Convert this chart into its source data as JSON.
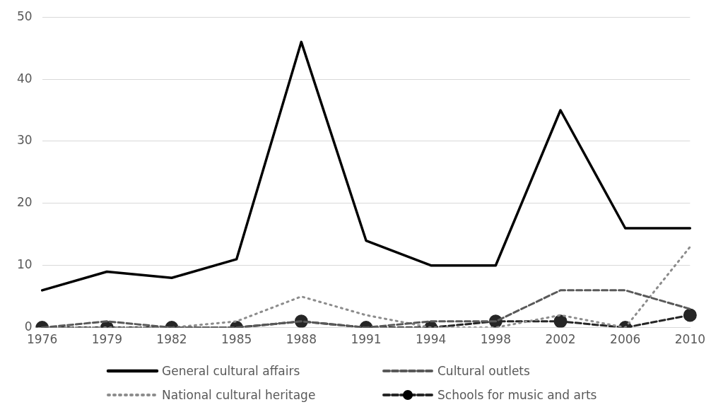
{
  "chart_data": {
    "type": "line",
    "categories": [
      "1976",
      "1979",
      "1982",
      "1985",
      "1988",
      "1991",
      "1994",
      "1998",
      "2002",
      "2006",
      "2010"
    ],
    "series": [
      {
        "name": "General cultural affairs",
        "color": "#000000",
        "line_style": "solid",
        "marker": "none",
        "values": [
          6,
          9,
          8,
          11,
          46,
          14,
          10,
          10,
          35,
          16,
          16
        ]
      },
      {
        "name": "Cultural outlets",
        "color": "#595959",
        "line_style": "dashed",
        "marker": "none",
        "values": [
          0,
          1,
          0,
          0,
          1,
          0,
          1,
          1,
          6,
          6,
          3
        ]
      },
      {
        "name": "National cultural heritage",
        "color": "#8c8c8c",
        "line_style": "dotted",
        "marker": "none",
        "values": [
          0,
          0,
          0,
          1,
          5,
          2,
          0,
          0,
          2,
          0,
          13
        ]
      },
      {
        "name": "Schools for music and arts",
        "color": "#262626",
        "line_style": "dashed",
        "marker": "circle",
        "values": [
          0,
          0,
          0,
          0,
          1,
          0,
          0,
          1,
          1,
          0,
          2
        ]
      }
    ],
    "ylim": [
      0,
      50
    ],
    "yticks": [
      0,
      10,
      20,
      30,
      40,
      50
    ],
    "grid": "y",
    "legend": "bottom"
  }
}
